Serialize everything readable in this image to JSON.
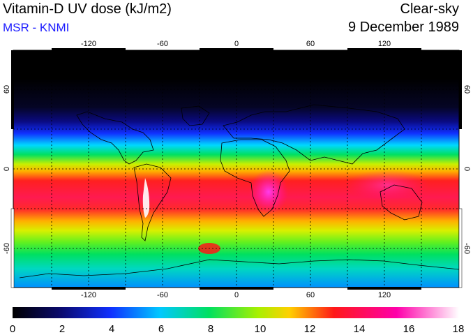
{
  "header": {
    "title": "Vitamin-D UV dose (kJ/m2)",
    "source": "MSR - KNMI",
    "sky_condition": "Clear-sky",
    "date": "9 December 1989"
  },
  "map": {
    "projection": "equirectangular",
    "lon_range": [
      -180,
      180
    ],
    "lat_range": [
      -90,
      90
    ],
    "lon_ticks": [
      "-120",
      "-60",
      "0",
      "60",
      "120"
    ],
    "lat_ticks": [
      "60",
      "0",
      "-60"
    ],
    "grid_lines": "dotted"
  },
  "colorbar": {
    "ticks": [
      "0",
      "2",
      "4",
      "6",
      "8",
      "10",
      "12",
      "14",
      "16",
      "18"
    ],
    "range": [
      0,
      18
    ],
    "colors": [
      "#000000",
      "#0a0a70",
      "#1030ff",
      "#00c8ff",
      "#00e060",
      "#a8f000",
      "#ffd000",
      "#ff1818",
      "#ff00aa",
      "#ffffff"
    ]
  }
}
